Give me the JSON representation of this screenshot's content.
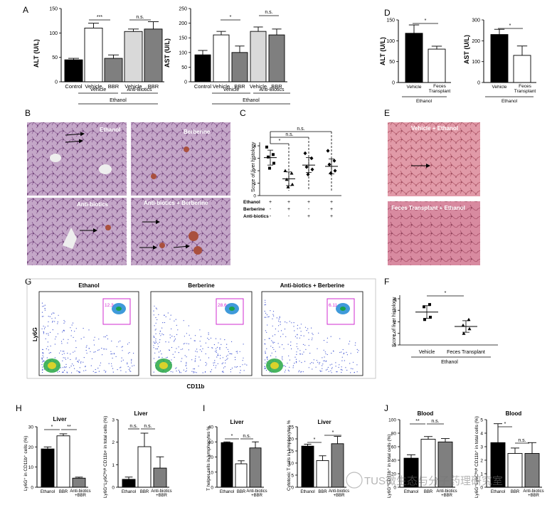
{
  "labels": {
    "A": "A",
    "B": "B",
    "C": "C",
    "D": "D",
    "E": "E",
    "F": "F",
    "G": "G",
    "H": "H",
    "I": "I",
    "J": "J"
  },
  "common": {
    "ethanol": "Ethanol",
    "vehicle": "Vehicle",
    "bbr": "BBR",
    "control": "Control",
    "anti_biotics": "Anti-Biotics",
    "ns": "n.s.",
    "star": "*",
    "star2": "**",
    "star3": "***",
    "feces1": "Feces",
    "feces2": "Transplant",
    "feces_transplant": "Feces Transplant",
    "ab_bbr1": "Anti-biotics",
    "ab_bbr2": "+BBR"
  },
  "micrographs": {
    "b1": "Ethanol",
    "b2": "Berberine",
    "b3": "Anti-biotics",
    "b4": "Anti-biotics + Berberine",
    "e1": "Vehicle + Ethanol",
    "e2": "Feces Transplant + Ethanol"
  },
  "flow": {
    "titles": [
      "Ethanol",
      "Berberine",
      "Anti-biotics + Berberine"
    ],
    "gates": [
      "12.3",
      "28.6",
      "6.11"
    ],
    "xaxis": "CD11b",
    "yaxis": "Ly6G"
  },
  "panelC": {
    "ylabel": "Score of liver histology",
    "rows": [
      {
        "name": "Ethanol",
        "marks": [
          "+",
          "+",
          "+",
          "+"
        ]
      },
      {
        "name": "Berberine",
        "marks": [
          "-",
          "+",
          "-",
          "+"
        ]
      },
      {
        "name": "Anti-biotics",
        "marks": [
          "-",
          "-",
          "+",
          "+"
        ]
      }
    ]
  },
  "panelF": {
    "ylabel": "Score of liver histology"
  },
  "panelH": {
    "title": "Liver",
    "ylabel1": "Ly6G⁺ in CD11b⁺ cells (%)",
    "ylabel2": "Ly6G⁺Ly6Cʰⁱᵍʰ CD11b+ in total cells (%)"
  },
  "panelI": {
    "title": "Liver",
    "ylabel1": "T helper cells in lymphocytes %",
    "ylabel2": "Cytotoxic T cells in lymphocytes %"
  },
  "panelJ": {
    "title": "Blood",
    "ylabel1": "Ly6G⁺CD11b⁺ in total cells (%)",
    "ylabel2": "Ly6G⁺Ly6Cʰⁱᵍʰ CD11b⁺ in total cells (%)"
  },
  "watermark": "TUS微生态与分子药理研究室",
  "chart_data": [
    {
      "id": "A1",
      "type": "bar",
      "ylabel": "ALT (U/L)",
      "ylim": [
        0,
        150
      ],
      "ticks": [
        0,
        50,
        100,
        150
      ],
      "categories": [
        "Control",
        "Vehicle",
        "BBR",
        "Vehicle",
        "BBR"
      ],
      "values": [
        45,
        110,
        48,
        103,
        108
      ],
      "errors": [
        3,
        10,
        7,
        5,
        15
      ],
      "fills": [
        "#000000",
        "#ffffff",
        "#7f7f7f",
        "#d9d9d9",
        "#7f7f7f"
      ]
    },
    {
      "id": "A2",
      "type": "bar",
      "ylabel": "AST (U/L)",
      "ylim": [
        0,
        250
      ],
      "ticks": [
        0,
        50,
        100,
        150,
        200,
        250
      ],
      "categories": [
        "Control",
        "Vehicle",
        "BBR",
        "Vehicle",
        "BBR"
      ],
      "values": [
        92,
        160,
        100,
        172,
        160
      ],
      "errors": [
        15,
        12,
        22,
        15,
        20
      ],
      "fills": [
        "#000000",
        "#ffffff",
        "#7f7f7f",
        "#d9d9d9",
        "#7f7f7f"
      ]
    },
    {
      "id": "D1",
      "type": "bar",
      "ylabel": "ALT (U/L)",
      "ylim": [
        0,
        150
      ],
      "ticks": [
        0,
        50,
        100,
        150
      ],
      "categories": [
        "Vehicle",
        "Feces Transplant"
      ],
      "values": [
        118,
        80
      ],
      "errors": [
        20,
        7
      ],
      "fills": [
        "#000000",
        "#ffffff"
      ]
    },
    {
      "id": "D2",
      "type": "bar",
      "ylabel": "AST (U/L)",
      "ylim": [
        0,
        300
      ],
      "ticks": [
        0,
        100,
        200,
        300
      ],
      "categories": [
        "Vehicle",
        "Feces Transplant"
      ],
      "values": [
        230,
        130
      ],
      "errors": [
        25,
        45
      ],
      "fills": [
        "#000000",
        "#ffffff"
      ]
    },
    {
      "id": "C",
      "type": "scatter",
      "ylabel": "Score of liver histology",
      "ylim": [
        0,
        4
      ],
      "ticks": [
        0,
        1,
        2,
        3,
        4
      ],
      "groups": [
        {
          "points": [
            3.9,
            3.3,
            3.1,
            2.6,
            2.2
          ],
          "mean": 3.05,
          "sd": 0.6
        },
        {
          "points": [
            2.0,
            1.8,
            1.3,
            0.9,
            0.7
          ],
          "mean": 1.35,
          "sd": 0.55
        },
        {
          "points": [
            3.4,
            3.0,
            2.3,
            2.1,
            1.7
          ],
          "mean": 2.45,
          "sd": 0.6
        },
        {
          "points": [
            3.6,
            2.8,
            2.5,
            2.0,
            1.8
          ],
          "mean": 2.35,
          "sd": 0.6
        }
      ]
    },
    {
      "id": "F",
      "type": "scatter",
      "ylabel": "Score of liver histology",
      "ylim": [
        0,
        4
      ],
      "ticks": [
        0,
        1,
        2,
        3,
        4
      ],
      "categories": [
        "Vehicle",
        "Feces Transplant"
      ],
      "groups": [
        {
          "points": [
            3.5,
            3.3,
            2.4,
            2.2
          ],
          "mean": 2.85,
          "sd": 0.55
        },
        {
          "points": [
            2.2,
            1.7,
            1.4,
            1.0
          ],
          "mean": 1.6,
          "sd": 0.5
        }
      ]
    },
    {
      "id": "H1",
      "type": "bar",
      "ylim": [
        0,
        30
      ],
      "ticks": [
        0,
        10,
        20,
        30
      ],
      "categories": [
        "Ethanol",
        "BBR",
        "Anti-biotics +BBR"
      ],
      "values": [
        19,
        25.5,
        4.5
      ],
      "errors": [
        1,
        1,
        0.5
      ],
      "fills": [
        "#000000",
        "#ffffff",
        "#7f7f7f"
      ]
    },
    {
      "id": "H2",
      "type": "bar",
      "ylim": [
        0,
        3
      ],
      "ticks": [
        0,
        1,
        2,
        3
      ],
      "categories": [
        "Ethanol",
        "BBR",
        "Anti-biotics +BBR"
      ],
      "values": [
        0.35,
        1.8,
        0.85
      ],
      "errors": [
        0.1,
        0.6,
        0.5
      ],
      "fills": [
        "#000000",
        "#ffffff",
        "#7f7f7f"
      ]
    },
    {
      "id": "I1",
      "type": "bar",
      "ylim": [
        0,
        40
      ],
      "ticks": [
        0,
        10,
        20,
        30,
        40
      ],
      "categories": [
        "Ethanol",
        "BBR",
        "Anti-biotics +BBR"
      ],
      "values": [
        29.5,
        15.5,
        26
      ],
      "errors": [
        0.5,
        2,
        4
      ],
      "fills": [
        "#000000",
        "#ffffff",
        "#7f7f7f"
      ]
    },
    {
      "id": "I2",
      "type": "bar",
      "ylim": [
        0,
        25
      ],
      "ticks": [
        0,
        5,
        10,
        15,
        20,
        25
      ],
      "categories": [
        "Ethanol",
        "BBR",
        "Anti-biotics +BBR"
      ],
      "values": [
        17,
        11,
        18
      ],
      "errors": [
        0.8,
        2,
        3
      ],
      "fills": [
        "#000000",
        "#ffffff",
        "#7f7f7f"
      ]
    },
    {
      "id": "J1",
      "type": "bar",
      "ylim": [
        0,
        100
      ],
      "ticks": [
        0,
        20,
        40,
        60,
        80,
        100
      ],
      "categories": [
        "Ethanol",
        "BBR",
        "Anti-biotics +BBR"
      ],
      "values": [
        43,
        71,
        67
      ],
      "errors": [
        5,
        4,
        5
      ],
      "fills": [
        "#000000",
        "#ffffff",
        "#7f7f7f"
      ]
    },
    {
      "id": "J2",
      "type": "bar",
      "ylim": [
        0,
        5
      ],
      "ticks": [
        0,
        1,
        2,
        3,
        4,
        5
      ],
      "categories": [
        "Ethanol",
        "BBR",
        "Anti-biotics +BBR"
      ],
      "values": [
        3.3,
        2.5,
        2.5
      ],
      "errors": [
        1.4,
        0.4,
        0.8
      ],
      "fills": [
        "#000000",
        "#ffffff",
        "#7f7f7f"
      ]
    }
  ]
}
